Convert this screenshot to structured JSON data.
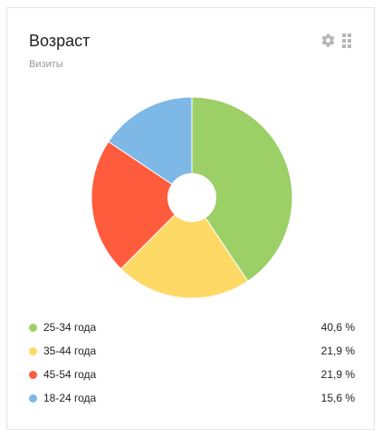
{
  "widget": {
    "title": "Возраст",
    "subtitle": "Визиты",
    "icons": [
      "gear-icon",
      "drag-handle-icon"
    ]
  },
  "chart_data": {
    "type": "pie",
    "title": "Возраст",
    "subtitle": "Визиты",
    "donut": true,
    "categories": [
      "25-34 года",
      "35-44 года",
      "45-54 года",
      "18-24 года"
    ],
    "values": [
      40.6,
      21.9,
      21.9,
      15.6
    ],
    "labels": [
      "40,6 %",
      "21,9 %",
      "21,9 %",
      "15,6 %"
    ],
    "colors": [
      "#9ccf66",
      "#ffd966",
      "#ff5c3d",
      "#7db8e6"
    ],
    "legend": "bottom"
  }
}
